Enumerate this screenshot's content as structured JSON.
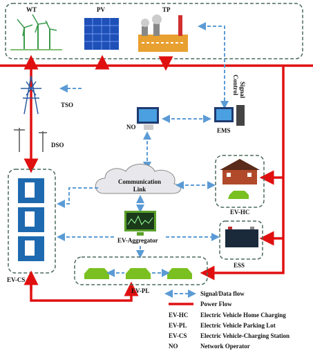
{
  "sources": [
    {
      "label": "WT"
    },
    {
      "label": "PV"
    },
    {
      "label": "TP"
    }
  ],
  "grid_labels": {
    "tso": "TSO",
    "dso": "DSO"
  },
  "nodes": {
    "no": "NO",
    "ems": "EMS",
    "control_signal": [
      "Control",
      "Signal"
    ],
    "communication_link": [
      "Communication",
      "Link"
    ],
    "ev_hc": "EV-HC",
    "ess": "ESS",
    "ev_aggregator": "EV-Aggregator",
    "ev_cs": "EV-CS",
    "ev_pl": "EV-PL"
  },
  "legend": {
    "flows": [
      {
        "label": "Signal/Data flow"
      },
      {
        "label": "Power Flow"
      }
    ],
    "abbreviations": [
      {
        "abbr": "EV-HC",
        "meaning": "Electric Vehicle  Home Charging"
      },
      {
        "abbr": "EV-PL",
        "meaning": "Electric Vehicle Parking Lot"
      },
      {
        "abbr": "EV-CS",
        "meaning": "Electric Vehicle-Charging Station"
      },
      {
        "abbr": "NO",
        "meaning": "Network Operator"
      }
    ]
  }
}
